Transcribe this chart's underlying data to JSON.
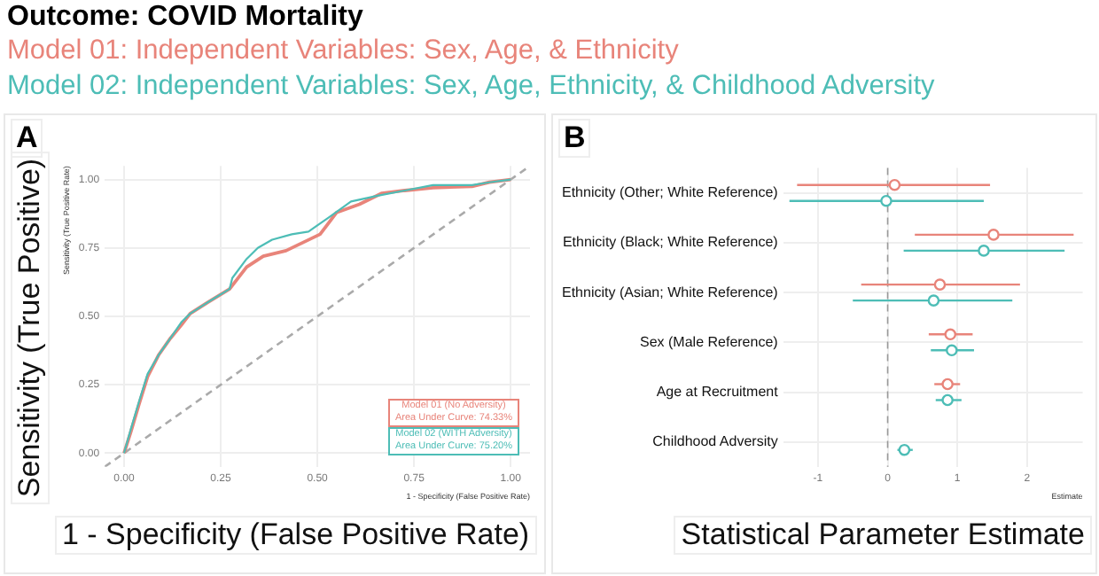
{
  "chart_data": [
    {
      "type": "line",
      "title": "Outcome: COVID Mortality",
      "xlabel": "1 - Specificity (False Positive Rate)",
      "ylabel": "Sensitivity (True Positive Rate)",
      "annotations": [
        "A",
        "Sensitivity (True Positive)",
        "1 - Specificity (False Positive Rate)",
        "Area Under Curve: 74.33%",
        "Area Under Curve: 75.20%"
      ],
      "xlim": [
        -0.05,
        1.05
      ],
      "ylim": [
        -0.05,
        1.05
      ],
      "xticks": [
        {
          "value": 0,
          "label": "0.00"
        },
        {
          "value": 0.25,
          "label": "0.25"
        },
        {
          "value": 0.5,
          "label": "0.50"
        },
        {
          "value": 0.75,
          "label": "0.75"
        },
        {
          "value": 1,
          "label": "1.00"
        }
      ],
      "yticks": [
        {
          "value": 0,
          "label": "0.00"
        },
        {
          "value": 0.25,
          "label": "0.25"
        },
        {
          "value": 0.5,
          "label": "0.50"
        },
        {
          "value": 0.75,
          "label": "0.75"
        },
        {
          "value": 1,
          "label": "1.00"
        }
      ],
      "grid": true,
      "legend": "bottom right",
      "marker": "none",
      "series": [
        {
          "name": "Model 01 (No Adversity)",
          "color": "#e8847a",
          "x": [
            0,
            0.018,
            0.039,
            0.061,
            0.09,
            0.12,
            0.149,
            0.171,
            0.215,
            0.273,
            0.317,
            0.36,
            0.419,
            0.463,
            0.507,
            0.55,
            0.609,
            0.667,
            0.726,
            0.799,
            0.9,
            0.945,
            1
          ],
          "values": [
            0,
            0.08,
            0.18,
            0.28,
            0.36,
            0.42,
            0.47,
            0.51,
            0.55,
            0.6,
            0.68,
            0.72,
            0.74,
            0.77,
            0.8,
            0.88,
            0.91,
            0.95,
            0.96,
            0.97,
            0.975,
            0.99,
            1
          ]
        },
        {
          "name": "Model 02 (WITH Adversity)",
          "color": "#4dbdb6",
          "x": [
            0,
            0.018,
            0.039,
            0.061,
            0.09,
            0.12,
            0.149,
            0.171,
            0.215,
            0.273,
            0.28,
            0.317,
            0.346,
            0.383,
            0.434,
            0.477,
            0.528,
            0.587,
            0.653,
            0.726,
            0.799,
            0.9,
            0.945,
            1
          ],
          "values": [
            0,
            0.09,
            0.19,
            0.29,
            0.36,
            0.42,
            0.48,
            0.51,
            0.55,
            0.6,
            0.64,
            0.71,
            0.75,
            0.78,
            0.8,
            0.81,
            0.86,
            0.92,
            0.94,
            0.96,
            0.98,
            0.98,
            0.99,
            1
          ]
        },
        {
          "type": "line",
          "color": "#aaaaaa",
          "line_style": "dashed",
          "x": [
            -0.05,
            1.05
          ],
          "values": [
            -0.05,
            1.05
          ]
        }
      ]
    },
    {
      "type": "scatter",
      "orientation": "horizontal",
      "xlabel": "Estimate",
      "annotations": [
        "B",
        "Statistical Parameter Estimate"
      ],
      "categories": [
        "Ethnicity (Other; White Reference)",
        "Ethnicity (Black; White Reference)",
        "Ethnicity (Asian; White Reference)",
        "Sex (Male Reference)",
        "Age at Recruitment",
        "Childhood Adversity"
      ],
      "xlim": [
        -1.5,
        2.8
      ],
      "xticks": [
        -1,
        0,
        1,
        2
      ],
      "grid": true,
      "legend": "top",
      "marker": "circle",
      "ref_lines": [
        {
          "axis": "x",
          "value": 0,
          "color": "#999999",
          "line_style": "dashed"
        }
      ],
      "series": [
        {
          "name": "Model 01: Independent Variables: Sex, Age, & Ethnicity",
          "color": "#e8847a",
          "values": [
            0.1,
            1.52,
            0.75,
            0.9,
            0.86,
            null
          ],
          "errors": [
            [
              -1.3,
              1.47
            ],
            [
              0.39,
              2.67
            ],
            [
              -0.38,
              1.9
            ],
            [
              0.59,
              1.22
            ],
            [
              0.67,
              1.04
            ],
            null
          ]
        },
        {
          "name": "Model 02: Independent Variables: Sex, Age, Ethnicity, & Childhood Adversity",
          "color": "#4dbdb6",
          "values": [
            -0.02,
            1.38,
            0.66,
            0.92,
            0.86,
            0.24
          ],
          "errors": [
            [
              -1.41,
              1.38
            ],
            [
              0.23,
              2.54
            ],
            [
              -0.5,
              1.79
            ],
            [
              0.62,
              1.24
            ],
            [
              0.69,
              1.06
            ],
            [
              0.14,
              0.36
            ]
          ]
        }
      ]
    }
  ]
}
